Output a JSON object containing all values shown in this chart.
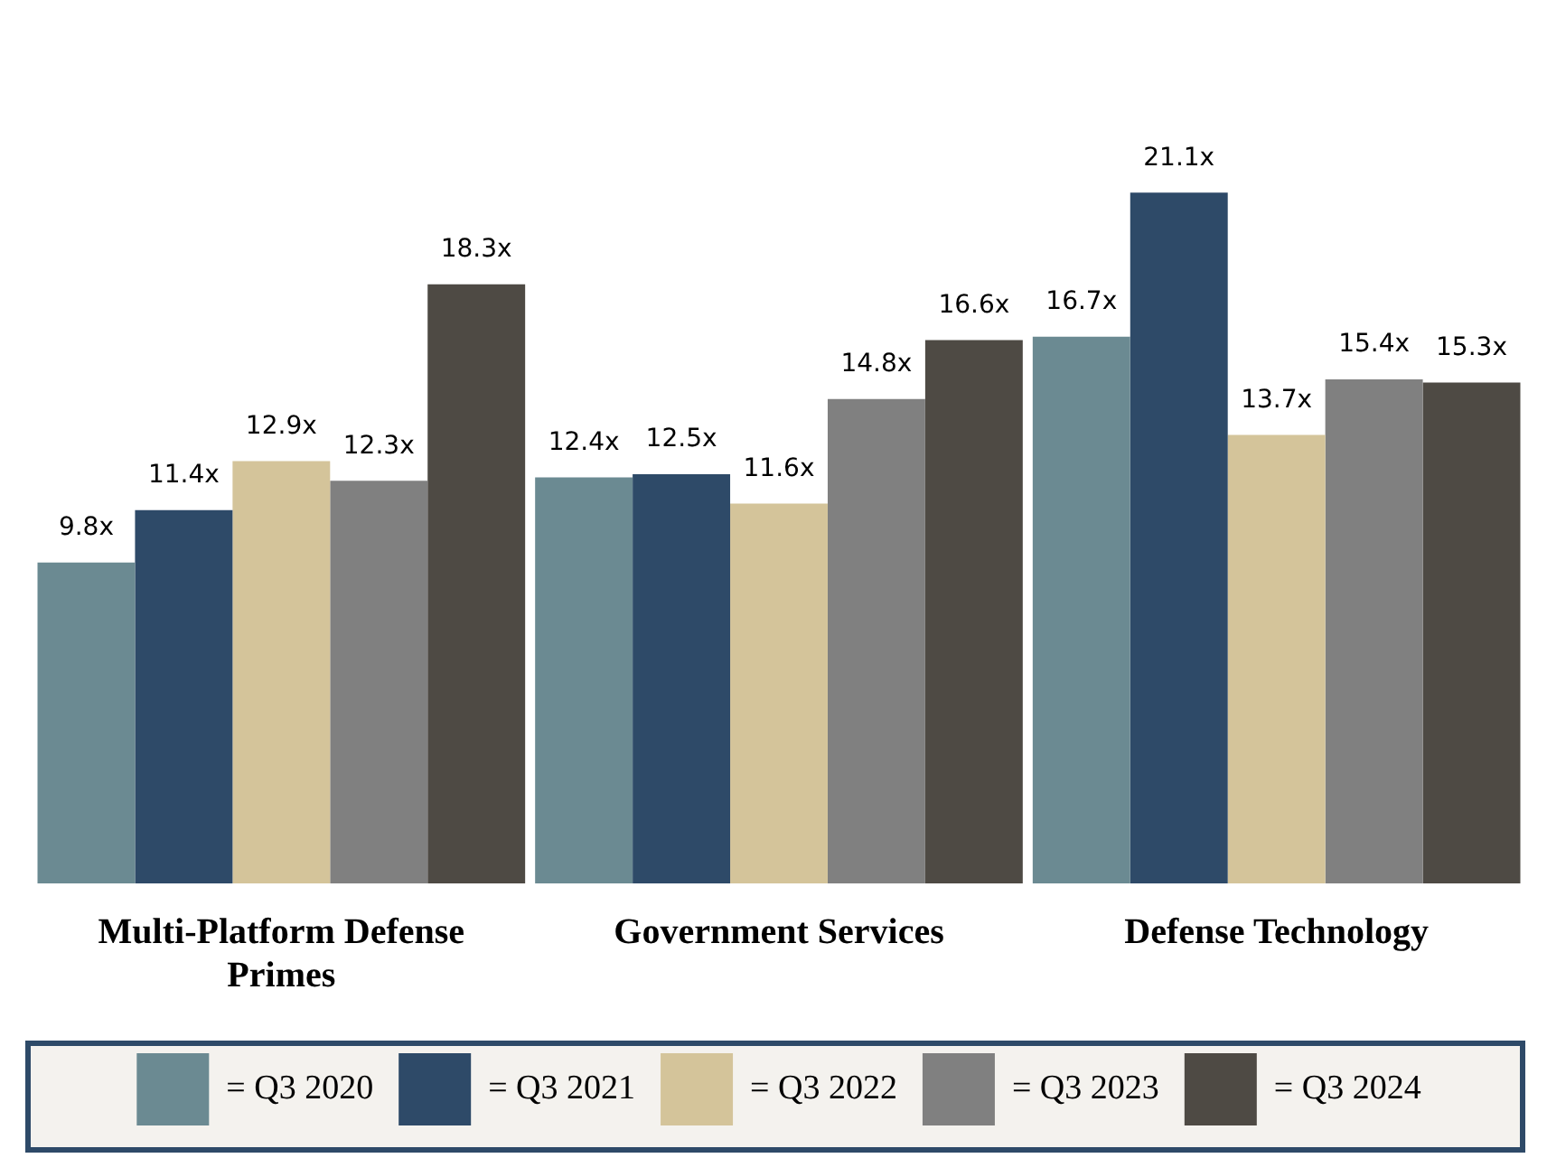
{
  "chart_data": {
    "type": "bar",
    "categories": [
      "Multi-Platform Defense Primes",
      "Government Services",
      "Defense Technology"
    ],
    "series": [
      {
        "name": "= Q3 2020",
        "color": "#6b8a92",
        "values": [
          9.8,
          12.4,
          16.7
        ],
        "value_labels": [
          "9.8x",
          "12.4x",
          "16.7x"
        ]
      },
      {
        "name": "= Q3 2021",
        "color": "#2e4a68",
        "values": [
          11.4,
          12.5,
          21.1
        ],
        "value_labels": [
          "11.4x",
          "12.5x",
          "21.1x"
        ]
      },
      {
        "name": "= Q3 2022",
        "color": "#d4c49a",
        "values": [
          12.9,
          11.6,
          13.7
        ],
        "value_labels": [
          "12.9x",
          "11.6x",
          "13.7x"
        ]
      },
      {
        "name": "= Q3 2023",
        "color": "#808080",
        "values": [
          12.3,
          14.8,
          15.4
        ],
        "value_labels": [
          "12.3x",
          "14.8x",
          "15.4x"
        ]
      },
      {
        "name": "= Q3 2024",
        "color": "#4e4a44",
        "values": [
          18.3,
          16.6,
          15.3
        ],
        "value_labels": [
          "18.3x",
          "16.6x",
          "15.3x"
        ]
      }
    ],
    "legend": "bottom"
  }
}
